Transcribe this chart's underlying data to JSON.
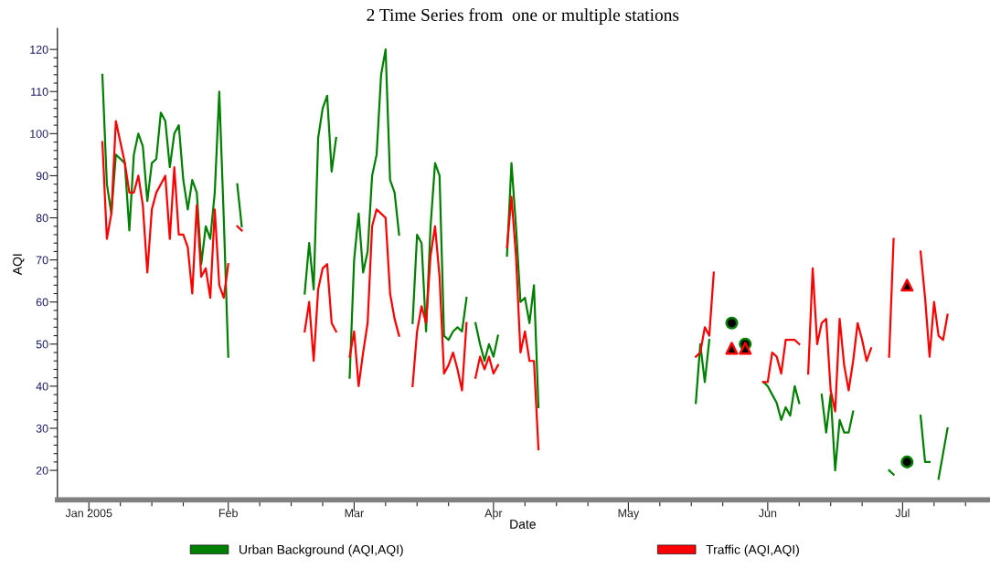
{
  "chart_data": {
    "type": "line",
    "title": "2 Time Series from  one or multiple stations",
    "xlabel": "Date",
    "ylabel": "AQI",
    "xlim": [
      "2004-12-25",
      "2005-07-20"
    ],
    "xticks": [
      {
        "value": "2005-01-01",
        "label": "Jan 2005"
      },
      {
        "value": "2005-01-08",
        "label": null
      },
      {
        "value": "2005-01-15",
        "label": null
      },
      {
        "value": "2005-01-22",
        "label": null
      },
      {
        "value": "2005-02-01",
        "label": "Feb"
      },
      {
        "value": "2005-02-08",
        "label": null
      },
      {
        "value": "2005-02-15",
        "label": null
      },
      {
        "value": "2005-02-22",
        "label": null
      },
      {
        "value": "2005-03-01",
        "label": "Mar"
      },
      {
        "value": "2005-03-08",
        "label": null
      },
      {
        "value": "2005-03-15",
        "label": null
      },
      {
        "value": "2005-03-22",
        "label": null
      },
      {
        "value": "2005-04-01",
        "label": "Apr"
      },
      {
        "value": "2005-04-08",
        "label": null
      },
      {
        "value": "2005-04-15",
        "label": null
      },
      {
        "value": "2005-04-22",
        "label": null
      },
      {
        "value": "2005-05-01",
        "label": "May"
      },
      {
        "value": "2005-05-08",
        "label": null
      },
      {
        "value": "2005-05-15",
        "label": null
      },
      {
        "value": "2005-05-22",
        "label": null
      },
      {
        "value": "2005-06-01",
        "label": "Jun"
      },
      {
        "value": "2005-06-08",
        "label": null
      },
      {
        "value": "2005-06-15",
        "label": null
      },
      {
        "value": "2005-06-22",
        "label": null
      },
      {
        "value": "2005-07-01",
        "label": "Jul"
      },
      {
        "value": "2005-07-08",
        "label": null
      },
      {
        "value": "2005-07-15",
        "label": null
      }
    ],
    "ylim": [
      13,
      125
    ],
    "yticks": [
      20,
      {
        "value": 22,
        "label": null
      },
      {
        "value": 24,
        "label": null
      },
      {
        "value": 26,
        "label": null
      },
      {
        "value": 28,
        "label": null
      },
      30,
      {
        "value": 32,
        "label": null
      },
      {
        "value": 34,
        "label": null
      },
      {
        "value": 36,
        "label": null
      },
      {
        "value": 38,
        "label": null
      },
      40,
      {
        "value": 42,
        "label": null
      },
      {
        "value": 44,
        "label": null
      },
      {
        "value": 46,
        "label": null
      },
      {
        "value": 48,
        "label": null
      },
      50,
      {
        "value": 52,
        "label": null
      },
      {
        "value": 54,
        "label": null
      },
      {
        "value": 56,
        "label": null
      },
      {
        "value": 58,
        "label": null
      },
      60,
      {
        "value": 62,
        "label": null
      },
      {
        "value": 64,
        "label": null
      },
      {
        "value": 66,
        "label": null
      },
      {
        "value": 68,
        "label": null
      },
      70,
      {
        "value": 72,
        "label": null
      },
      {
        "value": 74,
        "label": null
      },
      {
        "value": 76,
        "label": null
      },
      {
        "value": 78,
        "label": null
      },
      80,
      {
        "value": 82,
        "label": null
      },
      {
        "value": 84,
        "label": null
      },
      {
        "value": 86,
        "label": null
      },
      {
        "value": 88,
        "label": null
      },
      90,
      {
        "value": 92,
        "label": null
      },
      {
        "value": 94,
        "label": null
      },
      {
        "value": 96,
        "label": null
      },
      {
        "value": 98,
        "label": null
      },
      100,
      {
        "value": 102,
        "label": null
      },
      {
        "value": 104,
        "label": null
      },
      {
        "value": 106,
        "label": null
      },
      {
        "value": 108,
        "label": null
      },
      110,
      {
        "value": 112,
        "label": null
      },
      {
        "value": 114,
        "label": null
      },
      {
        "value": 116,
        "label": null
      },
      {
        "value": 118,
        "label": null
      },
      120
    ],
    "grid": false,
    "legend": "bottom",
    "marker": "none",
    "line_style": "solid",
    "series": [
      {
        "name": "Urban Background (AQI,AQI)",
        "color": "#008000",
        "x": [
          "2005-01-04",
          "2005-01-05",
          "2005-01-06",
          "2005-01-07",
          "2005-01-08",
          "2005-01-09",
          "2005-01-10",
          "2005-01-11",
          "2005-01-12",
          "2005-01-13",
          "2005-01-14",
          "2005-01-15",
          "2005-01-16",
          "2005-01-17",
          "2005-01-18",
          "2005-01-19",
          "2005-01-20",
          "2005-01-21",
          "2005-01-22",
          "2005-01-23",
          "2005-01-24",
          "2005-01-25",
          "2005-01-26",
          "2005-01-27",
          "2005-01-28",
          "2005-01-29",
          "2005-01-30",
          "2005-01-31",
          "2005-02-01",
          "2005-02-02",
          "2005-02-03",
          "2005-02-04",
          "2005-02-05",
          "2005-02-18",
          "2005-02-19",
          "2005-02-20",
          "2005-02-21",
          "2005-02-22",
          "2005-02-23",
          "2005-02-24",
          "2005-02-25",
          "2005-02-26",
          "2005-02-28",
          "2005-03-01",
          "2005-03-02",
          "2005-03-03",
          "2005-03-04",
          "2005-03-05",
          "2005-03-06",
          "2005-03-07",
          "2005-03-08",
          "2005-03-09",
          "2005-03-10",
          "2005-03-11",
          "2005-03-12",
          "2005-03-14",
          "2005-03-15",
          "2005-03-16",
          "2005-03-17",
          "2005-03-18",
          "2005-03-19",
          "2005-03-20",
          "2005-03-21",
          "2005-03-22",
          "2005-03-23",
          "2005-03-24",
          "2005-03-25",
          "2005-03-26",
          "2005-03-27",
          "2005-03-28",
          "2005-03-29",
          "2005-03-30",
          "2005-03-31",
          "2005-04-01",
          "2005-04-02",
          "2005-04-03",
          "2005-04-04",
          "2005-04-05",
          "2005-04-06",
          "2005-04-07",
          "2005-04-08",
          "2005-04-09",
          "2005-04-10",
          "2005-04-11",
          "2005-04-12",
          "2005-05-16",
          "2005-05-17",
          "2005-05-18",
          "2005-05-19",
          "2005-05-20",
          "2005-05-31",
          "2005-06-01",
          "2005-06-02",
          "2005-06-03",
          "2005-06-04",
          "2005-06-05",
          "2005-06-06",
          "2005-06-07",
          "2005-06-08",
          "2005-06-09",
          "2005-06-13",
          "2005-06-14",
          "2005-06-15",
          "2005-06-16",
          "2005-06-17",
          "2005-06-18",
          "2005-06-19",
          "2005-06-20",
          "2005-06-21",
          "2005-06-28",
          "2005-06-29",
          "2005-06-30",
          "2005-07-05",
          "2005-07-06",
          "2005-07-07",
          "2005-07-08",
          "2005-07-09",
          "2005-07-10",
          "2005-07-11"
        ],
        "values": [
          114,
          88,
          81,
          95,
          94,
          93,
          77,
          95,
          100,
          97,
          84,
          93,
          94,
          105,
          103,
          92,
          100,
          102,
          89,
          82,
          89,
          86,
          69,
          78,
          75,
          86,
          110,
          80,
          47,
          null,
          88,
          78,
          null,
          62,
          74,
          63,
          99,
          106,
          109,
          91,
          99,
          null,
          42,
          70,
          81,
          67,
          72,
          90,
          95,
          114,
          120,
          89,
          86,
          76,
          null,
          55,
          76,
          74,
          53,
          78,
          93,
          90,
          52,
          51,
          53,
          54,
          53,
          61,
          null,
          55,
          50,
          46,
          50,
          47,
          52,
          null,
          71,
          93,
          78,
          60,
          61,
          55,
          64,
          35,
          null,
          36,
          50,
          41,
          51,
          null,
          41,
          40,
          38,
          36,
          32,
          35,
          33,
          40,
          36,
          null,
          38,
          29,
          38,
          20,
          32,
          29,
          29,
          34,
          null,
          20,
          19,
          null,
          33,
          22,
          22,
          null,
          18,
          24,
          30
        ]
      },
      {
        "name": "Traffic (AQI,AQI)",
        "color": "#ff0000",
        "x": [
          "2005-01-04",
          "2005-01-05",
          "2005-01-06",
          "2005-01-07",
          "2005-01-08",
          "2005-01-09",
          "2005-01-10",
          "2005-01-11",
          "2005-01-12",
          "2005-01-13",
          "2005-01-14",
          "2005-01-15",
          "2005-01-16",
          "2005-01-17",
          "2005-01-18",
          "2005-01-19",
          "2005-01-20",
          "2005-01-21",
          "2005-01-22",
          "2005-01-23",
          "2005-01-24",
          "2005-01-25",
          "2005-01-26",
          "2005-01-27",
          "2005-01-28",
          "2005-01-29",
          "2005-01-30",
          "2005-01-31",
          "2005-02-01",
          "2005-02-02",
          "2005-02-03",
          "2005-02-04",
          "2005-02-05",
          "2005-02-18",
          "2005-02-19",
          "2005-02-20",
          "2005-02-21",
          "2005-02-22",
          "2005-02-23",
          "2005-02-24",
          "2005-02-25",
          "2005-02-26",
          "2005-02-28",
          "2005-03-01",
          "2005-03-02",
          "2005-03-03",
          "2005-03-04",
          "2005-03-05",
          "2005-03-06",
          "2005-03-07",
          "2005-03-08",
          "2005-03-09",
          "2005-03-10",
          "2005-03-11",
          "2005-03-12",
          "2005-03-14",
          "2005-03-15",
          "2005-03-16",
          "2005-03-17",
          "2005-03-18",
          "2005-03-19",
          "2005-03-20",
          "2005-03-21",
          "2005-03-22",
          "2005-03-23",
          "2005-03-24",
          "2005-03-25",
          "2005-03-26",
          "2005-03-27",
          "2005-03-28",
          "2005-03-29",
          "2005-03-30",
          "2005-03-31",
          "2005-04-01",
          "2005-04-02",
          "2005-04-03",
          "2005-04-04",
          "2005-04-05",
          "2005-04-06",
          "2005-04-07",
          "2005-04-08",
          "2005-04-09",
          "2005-04-10",
          "2005-04-11",
          "2005-04-12",
          "2005-05-16",
          "2005-05-17",
          "2005-05-18",
          "2005-05-19",
          "2005-05-20",
          "2005-05-21",
          "2005-05-31",
          "2005-06-01",
          "2005-06-02",
          "2005-06-03",
          "2005-06-04",
          "2005-06-05",
          "2005-06-06",
          "2005-06-07",
          "2005-06-08",
          "2005-06-09",
          "2005-06-10",
          "2005-06-11",
          "2005-06-12",
          "2005-06-13",
          "2005-06-14",
          "2005-06-15",
          "2005-06-16",
          "2005-06-17",
          "2005-06-18",
          "2005-06-19",
          "2005-06-20",
          "2005-06-21",
          "2005-06-22",
          "2005-06-23",
          "2005-06-24",
          "2005-06-25",
          "2005-06-28",
          "2005-06-29",
          "2005-06-30",
          "2005-07-05",
          "2005-07-06",
          "2005-07-07",
          "2005-07-08",
          "2005-07-09",
          "2005-07-10",
          "2005-07-11"
        ],
        "values": [
          98,
          75,
          81,
          103,
          98,
          93,
          86,
          86,
          90,
          83,
          67,
          82,
          86,
          88,
          90,
          75,
          92,
          76,
          76,
          73,
          62,
          83,
          66,
          68,
          61,
          82,
          64,
          61,
          69,
          null,
          78,
          77,
          null,
          53,
          60,
          46,
          63,
          68,
          69,
          55,
          53,
          null,
          47,
          53,
          40,
          48,
          55,
          78,
          82,
          81,
          80,
          62,
          56,
          52,
          null,
          40,
          53,
          59,
          55,
          71,
          78,
          66,
          43,
          45,
          48,
          44,
          39,
          55,
          null,
          42,
          47,
          44,
          47,
          43,
          45,
          null,
          73,
          85,
          71,
          48,
          53,
          46,
          46,
          25,
          null,
          47,
          48,
          54,
          52,
          67,
          null,
          41,
          41,
          48,
          47,
          43,
          51,
          51,
          51,
          50,
          null,
          43,
          68,
          50,
          55,
          56,
          39,
          34,
          56,
          45,
          39,
          46,
          55,
          51,
          46,
          49,
          null,
          47,
          75,
          null,
          72,
          61,
          47,
          60,
          52,
          51,
          57
        ]
      },
      {
        "type": "scatter",
        "marker": "circle",
        "color": "#008000",
        "x": [
          "2005-05-24",
          "2005-05-27",
          "2005-07-02"
        ],
        "values": [
          55,
          50,
          22
        ]
      },
      {
        "type": "scatter",
        "marker": "triangle",
        "color": "#ff0000",
        "x": [
          "2005-05-24",
          "2005-05-27",
          "2005-07-02"
        ],
        "values": [
          49,
          49,
          64
        ]
      }
    ]
  }
}
